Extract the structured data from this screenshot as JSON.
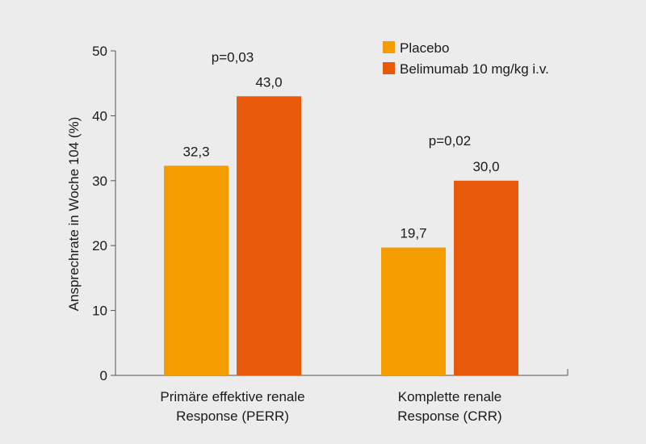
{
  "chart_data": {
    "type": "bar",
    "title": "",
    "xlabel": "",
    "ylabel": "Ansprechrate in Woche 104 (%)",
    "ylim": [
      0,
      50
    ],
    "yticks": [
      0,
      10,
      20,
      30,
      40,
      50
    ],
    "categories": [
      [
        "Primäre effektive renale",
        "Response (PERR)"
      ],
      [
        "Komplette renale",
        "Response (CRR)"
      ]
    ],
    "series": [
      {
        "name": "Placebo",
        "color": "#f59c00",
        "values": [
          32.3,
          19.7
        ],
        "labels": [
          "32,3",
          "19,7"
        ]
      },
      {
        "name": "Belimumab 10 mg/kg i.v.",
        "color": "#e8590c",
        "values": [
          43.0,
          30.0
        ],
        "labels": [
          "43,0",
          "30,0"
        ]
      }
    ],
    "annotations": [
      "p=0,03",
      "p=0,02"
    ],
    "legend_position": "top-right"
  }
}
